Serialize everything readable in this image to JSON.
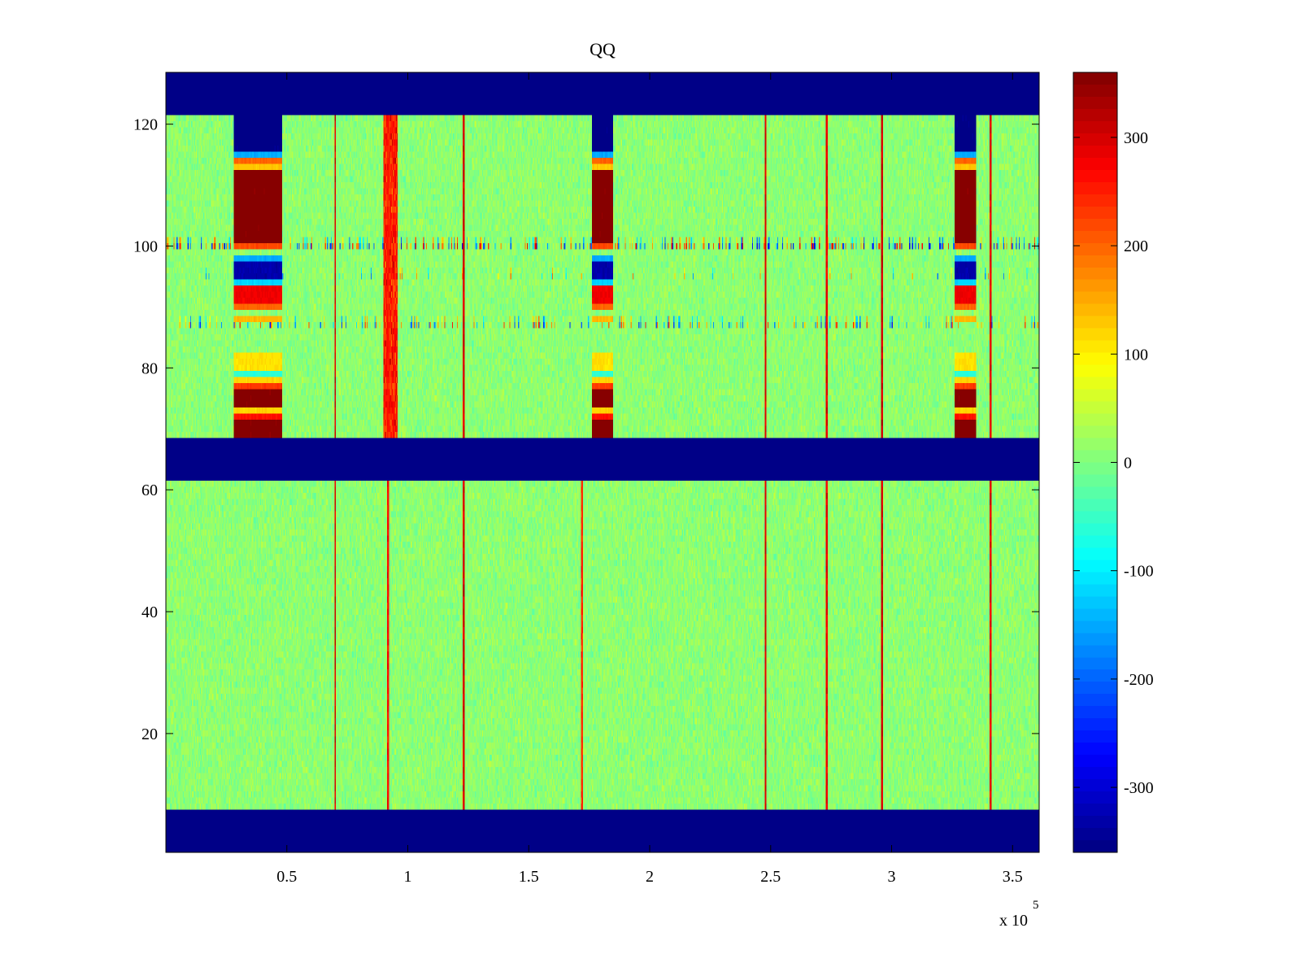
{
  "chart_data": {
    "type": "heatmap",
    "title": "QQ",
    "xlabel": "",
    "ylabel": "",
    "x_exponent_base": "x 10",
    "x_exponent_power": "5",
    "xlim": [
      0,
      3.61
    ],
    "ylim": [
      0.5,
      128.5
    ],
    "x_ticks": [
      0.5,
      1,
      1.5,
      2,
      2.5,
      3,
      3.5
    ],
    "x_tick_labels": [
      "0.5",
      "1",
      "1.5",
      "2",
      "2.5",
      "3",
      "3.5"
    ],
    "y_ticks": [
      20,
      40,
      60,
      80,
      100,
      120
    ],
    "y_tick_labels": [
      "20",
      "40",
      "60",
      "80",
      "100",
      "120"
    ],
    "colorbar": {
      "colormap": "jet",
      "clim": [
        -360,
        360
      ],
      "ticks": [
        -300,
        -200,
        -100,
        0,
        100,
        200,
        300
      ],
      "tick_labels": [
        "-300",
        "-200",
        "-100",
        "0",
        "100",
        "200",
        "300"
      ]
    },
    "background_value": 0,
    "noise_amplitude": 45,
    "empty_row_bands": [
      {
        "y_from": 0.5,
        "y_to": 7.5,
        "value": -360
      },
      {
        "y_from": 61.5,
        "y_to": 68.5,
        "value": -360
      },
      {
        "y_from": 121.5,
        "y_to": 128.5,
        "value": -360
      }
    ],
    "burst_columns": [
      {
        "x_from": 0.28,
        "x_to": 0.48,
        "rows": [
          {
            "y_from": 115.5,
            "y_to": 121.5,
            "value": -360
          },
          {
            "y_from": 114.5,
            "y_to": 115.5,
            "value": -150
          },
          {
            "y_from": 113.5,
            "y_to": 114.5,
            "value": 200
          },
          {
            "y_from": 112.5,
            "y_to": 113.5,
            "value": 130
          },
          {
            "y_from": 100.5,
            "y_to": 112.5,
            "value": 360
          },
          {
            "y_from": 99.5,
            "y_to": 100.5,
            "value": 220
          },
          {
            "y_from": 97.5,
            "y_to": 98.5,
            "value": -150
          },
          {
            "y_from": 94.5,
            "y_to": 97.5,
            "value": -330
          },
          {
            "y_from": 93.5,
            "y_to": 94.5,
            "value": -120
          },
          {
            "y_from": 90.5,
            "y_to": 93.5,
            "value": 280
          },
          {
            "y_from": 89.5,
            "y_to": 90.5,
            "value": 200
          },
          {
            "y_from": 87.5,
            "y_to": 88.5,
            "value": 140
          },
          {
            "y_from": 79.5,
            "y_to": 82.5,
            "value": 110
          },
          {
            "y_from": 78.5,
            "y_to": 79.5,
            "value": -60
          },
          {
            "y_from": 77.5,
            "y_to": 78.5,
            "value": 120
          },
          {
            "y_from": 76.5,
            "y_to": 77.5,
            "value": 230
          },
          {
            "y_from": 73.5,
            "y_to": 76.5,
            "value": 360
          },
          {
            "y_from": 72.5,
            "y_to": 73.5,
            "value": 120
          },
          {
            "y_from": 71.5,
            "y_to": 72.5,
            "value": 260
          },
          {
            "y_from": 68.5,
            "y_to": 71.5,
            "value": 360
          }
        ]
      },
      {
        "x_from": 1.76,
        "x_to": 1.85,
        "rows": [
          {
            "y_from": 115.5,
            "y_to": 121.5,
            "value": -360
          },
          {
            "y_from": 114.5,
            "y_to": 115.5,
            "value": -150
          },
          {
            "y_from": 113.5,
            "y_to": 114.5,
            "value": 200
          },
          {
            "y_from": 112.5,
            "y_to": 113.5,
            "value": 130
          },
          {
            "y_from": 100.5,
            "y_to": 112.5,
            "value": 360
          },
          {
            "y_from": 99.5,
            "y_to": 100.5,
            "value": 220
          },
          {
            "y_from": 97.5,
            "y_to": 98.5,
            "value": -150
          },
          {
            "y_from": 94.5,
            "y_to": 97.5,
            "value": -330
          },
          {
            "y_from": 93.5,
            "y_to": 94.5,
            "value": -120
          },
          {
            "y_from": 90.5,
            "y_to": 93.5,
            "value": 280
          },
          {
            "y_from": 89.5,
            "y_to": 90.5,
            "value": 200
          },
          {
            "y_from": 87.5,
            "y_to": 88.5,
            "value": 140
          },
          {
            "y_from": 79.5,
            "y_to": 82.5,
            "value": 110
          },
          {
            "y_from": 78.5,
            "y_to": 79.5,
            "value": -60
          },
          {
            "y_from": 77.5,
            "y_to": 78.5,
            "value": 120
          },
          {
            "y_from": 76.5,
            "y_to": 77.5,
            "value": 230
          },
          {
            "y_from": 73.5,
            "y_to": 76.5,
            "value": 360
          },
          {
            "y_from": 72.5,
            "y_to": 73.5,
            "value": 120
          },
          {
            "y_from": 71.5,
            "y_to": 72.5,
            "value": 260
          },
          {
            "y_from": 68.5,
            "y_to": 71.5,
            "value": 360
          }
        ]
      },
      {
        "x_from": 3.26,
        "x_to": 3.35,
        "rows": [
          {
            "y_from": 115.5,
            "y_to": 121.5,
            "value": -360
          },
          {
            "y_from": 114.5,
            "y_to": 115.5,
            "value": -150
          },
          {
            "y_from": 113.5,
            "y_to": 114.5,
            "value": 200
          },
          {
            "y_from": 112.5,
            "y_to": 113.5,
            "value": 130
          },
          {
            "y_from": 100.5,
            "y_to": 112.5,
            "value": 360
          },
          {
            "y_from": 99.5,
            "y_to": 100.5,
            "value": 220
          },
          {
            "y_from": 97.5,
            "y_to": 98.5,
            "value": -150
          },
          {
            "y_from": 94.5,
            "y_to": 97.5,
            "value": -330
          },
          {
            "y_from": 93.5,
            "y_to": 94.5,
            "value": -120
          },
          {
            "y_from": 90.5,
            "y_to": 93.5,
            "value": 280
          },
          {
            "y_from": 89.5,
            "y_to": 90.5,
            "value": 200
          },
          {
            "y_from": 87.5,
            "y_to": 88.5,
            "value": 140
          },
          {
            "y_from": 79.5,
            "y_to": 82.5,
            "value": 110
          },
          {
            "y_from": 78.5,
            "y_to": 79.5,
            "value": -60
          },
          {
            "y_from": 77.5,
            "y_to": 78.5,
            "value": 120
          },
          {
            "y_from": 76.5,
            "y_to": 77.5,
            "value": 230
          },
          {
            "y_from": 73.5,
            "y_to": 76.5,
            "value": 360
          },
          {
            "y_from": 72.5,
            "y_to": 73.5,
            "value": 120
          },
          {
            "y_from": 71.5,
            "y_to": 72.5,
            "value": 260
          },
          {
            "y_from": 68.5,
            "y_to": 71.5,
            "value": 360
          }
        ]
      }
    ],
    "vertical_lines": [
      {
        "x": 0.7,
        "value": 290,
        "spans": [
          [
            68.5,
            121.5
          ],
          [
            7.5,
            61.5
          ]
        ]
      },
      {
        "x": 0.92,
        "value": 260,
        "spans": [
          [
            68.5,
            121.5
          ],
          [
            7.5,
            61.5
          ]
        ]
      },
      {
        "x": 1.23,
        "value": 300,
        "spans": [
          [
            68.5,
            121.5
          ],
          [
            7.5,
            61.5
          ]
        ]
      },
      {
        "x": 1.72,
        "value": 240,
        "spans": [
          [
            7.5,
            61.5
          ]
        ]
      },
      {
        "x": 2.48,
        "value": 290,
        "spans": [
          [
            68.5,
            121.5
          ],
          [
            7.5,
            61.5
          ]
        ]
      },
      {
        "x": 2.73,
        "value": 280,
        "spans": [
          [
            68.5,
            121.5
          ],
          [
            7.5,
            61.5
          ]
        ]
      },
      {
        "x": 2.96,
        "value": 300,
        "spans": [
          [
            68.5,
            121.5
          ],
          [
            7.5,
            61.5
          ]
        ]
      },
      {
        "x": 3.41,
        "value": 290,
        "spans": [
          [
            68.5,
            121.5
          ],
          [
            7.5,
            61.5
          ]
        ]
      }
    ],
    "wide_stripe": {
      "x_from": 0.9,
      "x_to": 0.96,
      "y_from": 68.5,
      "y_to": 121.5,
      "value": 250
    },
    "speckle_rows": [
      {
        "y": 100,
        "density": 0.28,
        "amplitude": 300
      },
      {
        "y": 87,
        "density": 0.2,
        "amplitude": 260
      },
      {
        "y": 95,
        "density": 0.04,
        "amplitude": 200
      }
    ]
  }
}
